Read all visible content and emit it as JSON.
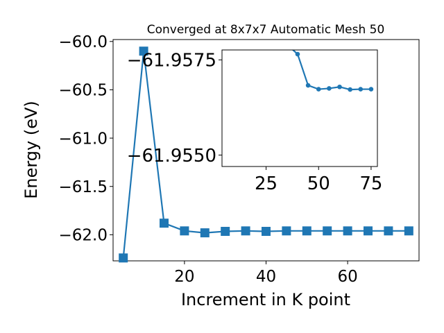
{
  "chart_data": [
    {
      "type": "line",
      "title": "Converged at 8x7x7 Automatic Mesh 50",
      "xlabel": "Increment in K point",
      "ylabel": "Energy (eV)",
      "xlim": [
        2.5,
        77.5
      ],
      "ylim": [
        -62.27,
        -59.98
      ],
      "xticks": [
        20,
        40,
        60
      ],
      "yticks": [
        -60.0,
        -60.5,
        -61.0,
        -61.5,
        -62.0
      ],
      "xtick_labels": [
        "20",
        "40",
        "60"
      ],
      "ytick_labels": [
        "−60.0",
        "−60.5",
        "−61.0",
        "−61.5",
        "−62.0"
      ],
      "color": "#1f77b4",
      "marker": "square",
      "series": [
        {
          "x": [
            5,
            10,
            15,
            20,
            25,
            30,
            35,
            40,
            45,
            50,
            55,
            60,
            65,
            70,
            75
          ],
          "y": [
            -62.24,
            -60.1,
            -61.88,
            -61.96,
            -61.98,
            -61.965,
            -61.96,
            -61.965,
            -61.96,
            -61.96,
            -61.96,
            -61.96,
            -61.96,
            -61.96,
            -61.96
          ]
        }
      ]
    },
    {
      "type": "line",
      "title": "",
      "xlim": [
        4,
        78
      ],
      "ylim": [
        -61.9547,
        -61.95776
      ],
      "xticks": [
        25,
        50,
        75
      ],
      "yticks": [
        -61.9575,
        -61.955
      ],
      "xtick_labels": [
        "25",
        "50",
        "75"
      ],
      "ytick_labels": [
        "−61.9575",
        "−61.9550"
      ],
      "color": "#1f77b4",
      "marker": "circle",
      "series": [
        {
          "x": [
            35,
            40,
            45,
            50,
            55,
            60,
            65,
            70,
            75
          ],
          "y": [
            -61.9579,
            -61.95765,
            -61.95683,
            -61.95673,
            -61.95675,
            -61.95679,
            -61.95672,
            -61.95673,
            -61.95673
          ]
        }
      ]
    }
  ]
}
